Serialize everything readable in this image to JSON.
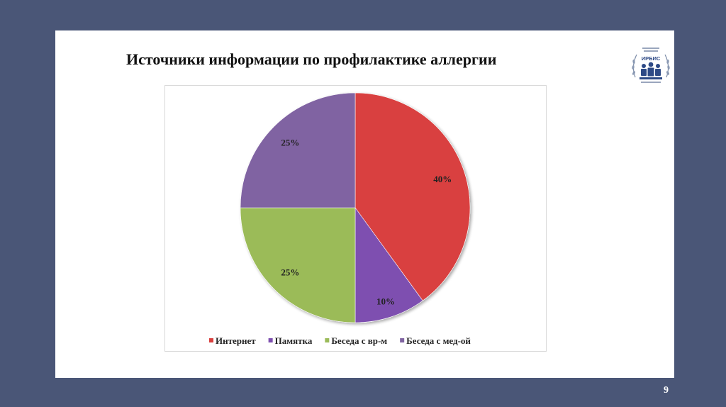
{
  "slide": {
    "title": "Источники информации по профилактике аллергии",
    "page_number": "9",
    "logo_text": "ИРБИС"
  },
  "colors": {
    "background": "#4a5677",
    "series": [
      "#d9403f",
      "#7e4fb0",
      "#9bbb59",
      "#8064a2"
    ]
  },
  "chart_data": {
    "type": "pie",
    "title": "Источники информации по профилактике аллергии",
    "categories": [
      "Интернет",
      "Памятка",
      "Беседа с вр-м",
      "Беседа с мед-ой"
    ],
    "values": [
      40,
      10,
      25,
      25
    ],
    "labels": [
      "40%",
      "10%",
      "25%",
      "25%"
    ],
    "legend": "bottom"
  }
}
